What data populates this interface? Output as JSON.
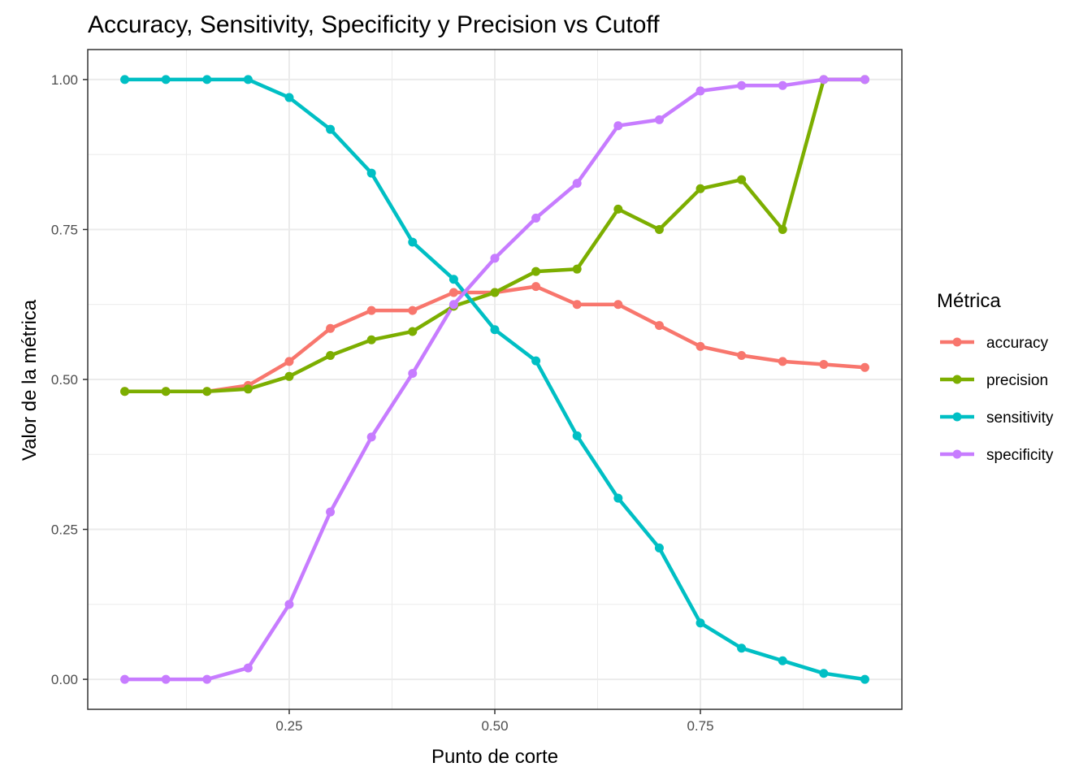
{
  "chart_data": {
    "type": "line",
    "title": "Accuracy, Sensitivity, Specificity y Precision vs Cutoff",
    "xlabel": "Punto de corte",
    "ylabel": "Valor de la métrica",
    "xlim": [
      0.005,
      0.995
    ],
    "ylim": [
      -0.05,
      1.05
    ],
    "x_ticks": [
      0.25,
      0.5,
      0.75
    ],
    "x_tick_labels": [
      "0.25",
      "0.50",
      "0.75"
    ],
    "y_ticks": [
      0,
      0.25,
      0.5,
      0.75,
      1
    ],
    "y_tick_labels": [
      "0.00",
      "0.25",
      "0.50",
      "0.75",
      "1.00"
    ],
    "grid": true,
    "legend_title": "Métrica",
    "legend_position": "right",
    "x": [
      0.05,
      0.1,
      0.15,
      0.2,
      0.25,
      0.3,
      0.35,
      0.4,
      0.45,
      0.5,
      0.55,
      0.6,
      0.65,
      0.7,
      0.75,
      0.8,
      0.85,
      0.9,
      0.95
    ],
    "series": [
      {
        "name": "accuracy",
        "color": "#F8766D",
        "values": [
          0.48,
          0.48,
          0.48,
          0.49,
          0.53,
          0.585,
          0.615,
          0.615,
          0.645,
          0.645,
          0.655,
          0.625,
          0.625,
          0.59,
          0.555,
          0.54,
          0.53,
          0.525,
          0.52
        ]
      },
      {
        "name": "precision",
        "color": "#7CAE00",
        "values": [
          0.48,
          0.48,
          0.48,
          0.484,
          0.505,
          0.54,
          0.566,
          0.58,
          0.622,
          0.645,
          0.68,
          0.684,
          0.784,
          0.75,
          0.818,
          0.833,
          0.75,
          1.0,
          1.0
        ]
      },
      {
        "name": "sensitivity",
        "color": "#00BFC4",
        "values": [
          1.0,
          1.0,
          1.0,
          1.0,
          0.97,
          0.917,
          0.844,
          0.729,
          0.667,
          0.583,
          0.531,
          0.406,
          0.302,
          0.219,
          0.094,
          0.052,
          0.031,
          0.01,
          0.0
        ]
      },
      {
        "name": "specificity",
        "color": "#C77CFF",
        "values": [
          0.0,
          0.0,
          0.0,
          0.019,
          0.125,
          0.279,
          0.404,
          0.51,
          0.625,
          0.702,
          0.769,
          0.827,
          0.923,
          0.933,
          0.981,
          0.99,
          0.99,
          1.0,
          1.0
        ]
      }
    ]
  }
}
